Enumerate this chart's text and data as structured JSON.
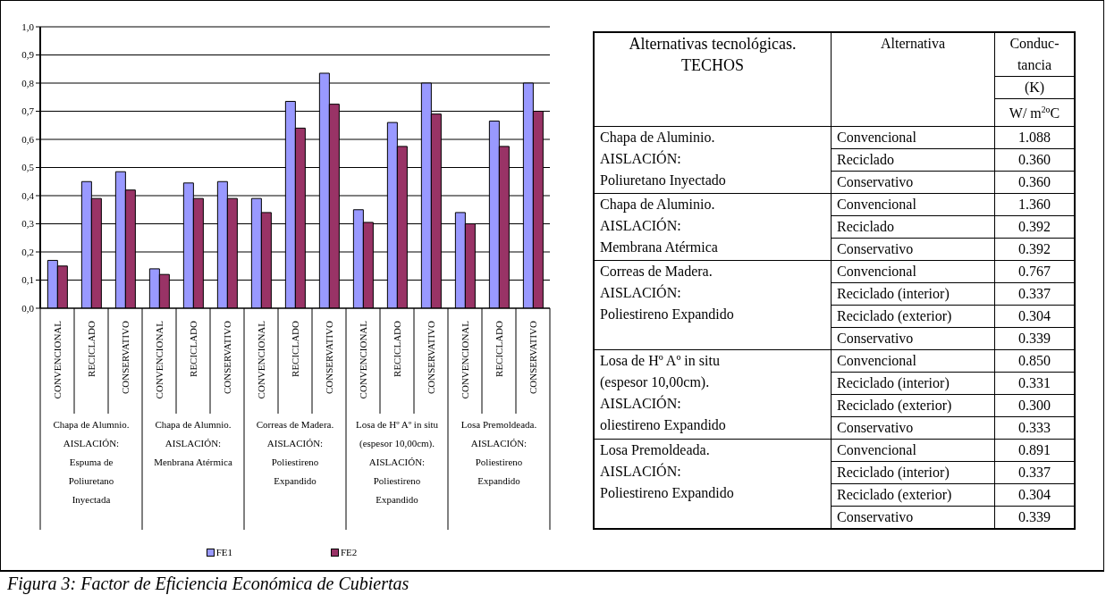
{
  "chart_data": [
    {
      "type": "bar",
      "categories": [
        "CONVENCIONAL",
        "RECICLADO",
        "CONSERVATIVO",
        "CONVENCIONAL",
        "RECICLADO",
        "CONSERVATIVO",
        "CONVENCIONAL",
        "RECICLADO",
        "CONSERVATIVO",
        "CONVENCIONAL",
        "RECICLADO",
        "CONSERVATIVO",
        "CONVENCIONAL",
        "RECICLADO",
        "CONSERVATIVO"
      ],
      "series": [
        {
          "name": "FE1",
          "color": "#9999ff",
          "values": [
            0.17,
            0.45,
            0.485,
            0.14,
            0.445,
            0.45,
            0.39,
            0.735,
            0.835,
            0.35,
            0.66,
            0.8,
            0.34,
            0.665,
            0.8
          ]
        },
        {
          "name": "FE2",
          "color": "#993366",
          "values": [
            0.15,
            0.39,
            0.42,
            0.12,
            0.39,
            0.39,
            0.34,
            0.64,
            0.725,
            0.305,
            0.575,
            0.69,
            0.3,
            0.575,
            0.7
          ]
        }
      ],
      "ylim": [
        0,
        1
      ],
      "yticks": [
        {
          "value": 0,
          "label": "0,0"
        },
        {
          "value": 0.1,
          "label": "0,1"
        },
        {
          "value": 0.2,
          "label": "0,2"
        },
        {
          "value": 0.3,
          "label": "0,3"
        },
        {
          "value": 0.4,
          "label": "0,4"
        },
        {
          "value": 0.5,
          "label": "0,5"
        },
        {
          "value": 0.6,
          "label": "0,6"
        },
        {
          "value": 0.7,
          "label": "0,7"
        },
        {
          "value": 0.8,
          "label": "0,8"
        },
        {
          "value": 0.9,
          "label": "0,9"
        },
        {
          "value": 1,
          "label": "1,0"
        }
      ],
      "grid": "y",
      "legend": "bottom",
      "annotations": [
        "Chapa de Alumnio.\nAISLACIÓN:\nEspuma de\nPoliuretano\nInyectada",
        "Chapa de Alumnio.\nAISLACIÓN:\nMenbrana Atérmica",
        "Correas de Madera.\nAISLACIÓN:\nPoliestireno\nExpandido",
        "Losa de Hº Aº in situ\n(espesor 10,00cm).\nAISLACIÓN:\nPoliestireno\nExpandido",
        "Losa Premoldeada.\nAISLACIÓN:\nPoliestireno\nExpandido",
        "Figura 3: Factor de Eficiencia Económica de Cubiertas"
      ]
    },
    {
      "type": "other",
      "annotations": [
        "Alternativas tecnológicas.\nTECHOS",
        "Alternativa",
        "Conduc-\ntancia",
        "(K)",
        "W/ m$^{2}$ºC",
        "1.088",
        "0.360",
        "0.360",
        "1.360",
        "0.392",
        "0.392",
        "0.767",
        "0.337",
        "0.304",
        "0.339",
        "0.850",
        "0.331",
        "0.300",
        "0.333",
        "0.891",
        "0.337",
        "0.304",
        "0.339"
      ],
      "y_categories": [
        "Chapa de Aluminio.\nAISLACIÓN:\nPoliuretano Inyectado",
        null,
        null,
        "Chapa de Aluminio.\nAISLACIÓN:\nMembrana Atérmica",
        null,
        null,
        "Correas de Madera.\nAISLACIÓN:\nPoliestireno Expandido",
        null,
        null,
        null,
        "Losa de Hº Aº in situ\n(espesor 10,00cm).\nAISLACIÓN:\noliestireno Expandido",
        null,
        null,
        null,
        "Losa Premoldeada.\nAISLACIÓN:\nPoliestireno Expandido",
        null,
        null,
        null
      ],
      "categories": [
        "Convencional",
        "Reciclado",
        "Conservativo",
        "Convencional",
        "Reciclado",
        "Conservativo",
        "Convencional",
        "Reciclado (interior)",
        "Reciclado (exterior)",
        "Conservativo",
        "Convencional",
        "Reciclado (interior)",
        "Reciclado (exterior)",
        "Conservativo",
        "Convencional",
        "Reciclado (interior)",
        "Reciclado (exterior)",
        "Conservativo"
      ],
      "x2label": null
    }
  ]
}
